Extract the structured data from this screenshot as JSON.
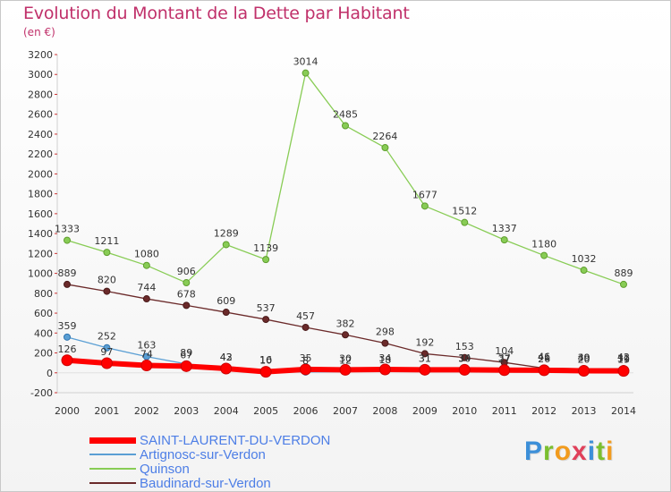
{
  "header": {
    "title": "Evolution du Montant de la Dette par Habitant",
    "subtitle": "(en €)"
  },
  "logo": {
    "letters": [
      "P",
      "r",
      "o",
      "x",
      "i",
      "t",
      "i"
    ]
  },
  "chart_data": {
    "type": "line",
    "title": "Evolution du Montant de la Dette par Habitant",
    "ylabel": "(en €)",
    "xlabel": "",
    "x": [
      2000,
      2001,
      2002,
      2003,
      2004,
      2005,
      2006,
      2007,
      2008,
      2009,
      2010,
      2011,
      2012,
      2013,
      2014
    ],
    "ylim": [
      -200,
      3200
    ],
    "yticks": [
      -200,
      0,
      200,
      400,
      600,
      800,
      1000,
      1200,
      1400,
      1600,
      1800,
      2000,
      2200,
      2400,
      2600,
      2800,
      3000,
      3200
    ],
    "grid": false,
    "legend_position": "bottom-left",
    "series": [
      {
        "name": "Quinson",
        "color": "#88cc55",
        "values": [
          1333,
          1211,
          1080,
          906,
          1289,
          1139,
          3014,
          2485,
          2264,
          1677,
          1512,
          1337,
          1180,
          1032,
          889
        ]
      },
      {
        "name": "Baudinard-sur-Verdon",
        "color": "#6b2a2a",
        "values": [
          889,
          820,
          744,
          678,
          609,
          537,
          457,
          382,
          298,
          192,
          153,
          104,
          46,
          40,
          42
        ]
      },
      {
        "name": "Artignosc-sur-Verdon",
        "color": "#5b9fd4",
        "values": [
          359,
          252,
          163,
          89,
          42,
          16,
          8,
          12,
          18,
          31,
          34,
          37,
          41,
          39,
          31
        ]
      },
      {
        "name": "SAINT-LAURENT-DU-VERDON",
        "color": "#ff0000",
        "values": [
          126,
          97,
          74,
          67,
          43,
          10,
          35,
          30,
          34,
          31,
          30,
          27,
          26,
          20,
          19
        ]
      }
    ],
    "legend": [
      "SAINT-LAURENT-DU-VERDON",
      "Artignosc-sur-Verdon",
      "Quinson",
      "Baudinard-sur-Verdon"
    ]
  }
}
